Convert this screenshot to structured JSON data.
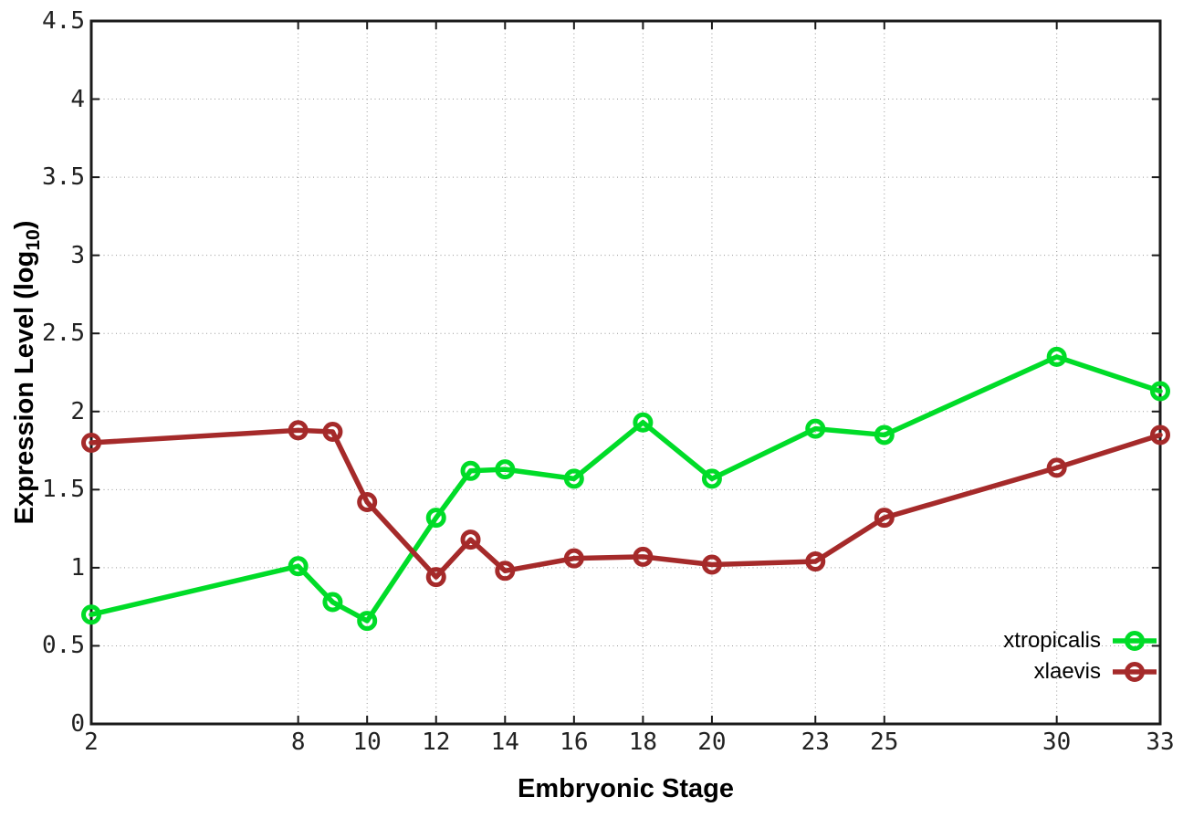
{
  "page": {
    "background": "#ffffff"
  },
  "chart_data": {
    "type": "line",
    "title": "",
    "xlabel": "Embryonic Stage",
    "ylabel": "Expression Level (log10)",
    "ylabel_parts": {
      "main": "Expression Level (log",
      "sub": "10",
      "end": ")"
    },
    "xlim": [
      2,
      33
    ],
    "ylim": [
      0,
      4.5
    ],
    "x_ticks": [
      2,
      8,
      10,
      12,
      14,
      16,
      18,
      20,
      23,
      25,
      30,
      33
    ],
    "y_ticks": [
      "0",
      "0.5",
      "1",
      "1.5",
      "2",
      "2.5",
      "3",
      "3.5",
      "4",
      "4.5"
    ],
    "grid": true,
    "legend_position": "inside-bottom-right",
    "axis_color": "#1a1a1a",
    "grid_color": "#999999",
    "tick_label_color": "#222222",
    "x": [
      2,
      8,
      9,
      10,
      12,
      13,
      14,
      16,
      18,
      20,
      23,
      25,
      30,
      33
    ],
    "series": [
      {
        "name": "xtropicalis",
        "color": "#00dc28",
        "marker": "open-circle",
        "values": [
          0.7,
          1.01,
          0.78,
          0.66,
          1.32,
          1.62,
          1.63,
          1.57,
          1.93,
          1.57,
          1.89,
          1.85,
          2.35,
          2.13
        ]
      },
      {
        "name": "xlaevis",
        "color": "#a52a2a",
        "marker": "open-circle",
        "values": [
          1.8,
          1.88,
          1.87,
          1.42,
          0.94,
          1.18,
          0.98,
          1.06,
          1.07,
          1.02,
          1.04,
          1.32,
          1.64,
          1.85
        ]
      }
    ]
  }
}
